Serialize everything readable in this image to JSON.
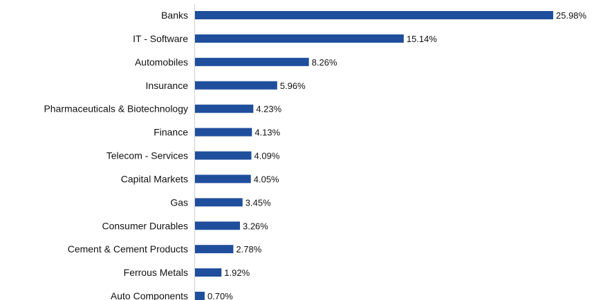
{
  "chart_data": {
    "type": "bar",
    "orientation": "horizontal",
    "categories": [
      "Banks",
      "IT - Software",
      "Automobiles",
      "Insurance",
      "Pharmaceuticals & Biotechnology",
      "Finance",
      "Telecom - Services",
      "Capital Markets",
      "Gas",
      "Consumer Durables",
      "Cement & Cement Products",
      "Ferrous Metals",
      "Auto Components"
    ],
    "values": [
      25.98,
      15.14,
      8.26,
      5.96,
      4.23,
      4.13,
      4.09,
      4.05,
      3.45,
      3.26,
      2.78,
      1.92,
      0.7
    ],
    "value_labels": [
      "25.98%",
      "15.14%",
      "8.26%",
      "5.96%",
      "4.23%",
      "4.13%",
      "4.09%",
      "4.05%",
      "3.45%",
      "3.26%",
      "2.78%",
      "1.92%",
      "0.70%"
    ],
    "title": "",
    "xlabel": "",
    "ylabel": "",
    "xlim": [
      0,
      25.98
    ],
    "grid": false,
    "legend": "none",
    "colors": {
      "bar": "#1f4e9c",
      "axis": "#cfcfcf",
      "text": "#111111"
    }
  }
}
